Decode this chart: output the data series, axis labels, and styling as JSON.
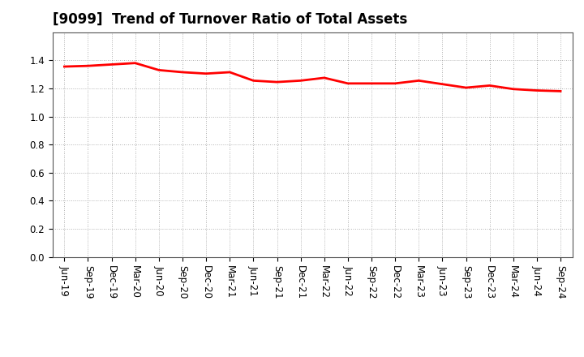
{
  "title": "[9099]  Trend of Turnover Ratio of Total Assets",
  "x_labels": [
    "Jun-19",
    "Sep-19",
    "Dec-19",
    "Mar-20",
    "Jun-20",
    "Sep-20",
    "Dec-20",
    "Mar-21",
    "Jun-21",
    "Sep-21",
    "Dec-21",
    "Mar-22",
    "Jun-22",
    "Sep-22",
    "Dec-22",
    "Mar-23",
    "Jun-23",
    "Sep-23",
    "Dec-23",
    "Mar-24",
    "Jun-24",
    "Sep-24"
  ],
  "y_values": [
    1.355,
    1.36,
    1.37,
    1.38,
    1.33,
    1.315,
    1.305,
    1.315,
    1.255,
    1.245,
    1.255,
    1.275,
    1.235,
    1.235,
    1.235,
    1.255,
    1.23,
    1.205,
    1.22,
    1.195,
    1.185,
    1.18
  ],
  "line_color": "#ff0000",
  "line_width": 2.0,
  "ylim": [
    0.0,
    1.6
  ],
  "yticks": [
    0.0,
    0.2,
    0.4,
    0.6,
    0.8,
    1.0,
    1.2,
    1.4
  ],
  "grid_color": "#999999",
  "background_color": "#ffffff",
  "title_fontsize": 12,
  "tick_fontsize": 8.5
}
